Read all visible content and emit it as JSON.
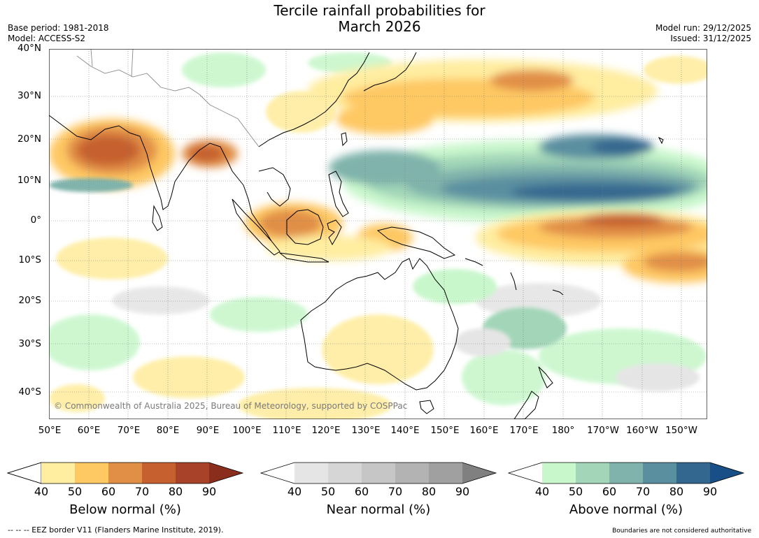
{
  "title": {
    "line1": "Tercile rainfall probabilities for",
    "line2": "March 2026"
  },
  "meta": {
    "base_period": "Base period: 1981-2018",
    "model": "Model: ACCESS-S2",
    "model_run": "Model run: 29/12/2025",
    "issued": "Issued: 31/12/2025"
  },
  "map": {
    "lat_labels": [
      "40°N",
      "30°N",
      "20°N",
      "10°N",
      "0°",
      "10°S",
      "20°S",
      "30°S",
      "40°S"
    ],
    "lon_labels": [
      "50°E",
      "60°E",
      "70°E",
      "80°E",
      "90°E",
      "100°E",
      "110°E",
      "120°E",
      "130°E",
      "140°E",
      "150°E",
      "160°E",
      "170°E",
      "180°",
      "170°W",
      "160°W",
      "150°W"
    ],
    "copyright": "© Commonwealth of Australia 2025, Bureau of Meteorology, supported by COSPPac"
  },
  "colorbars": [
    {
      "title": "Below normal (%)",
      "ticks": [
        "40",
        "50",
        "60",
        "70",
        "80",
        "90"
      ],
      "colors": [
        "#ffffff",
        "#ffeda0",
        "#fec863",
        "#e18f46",
        "#c6602f",
        "#a8432a",
        "#8a2d1d"
      ]
    },
    {
      "title": "Near normal (%)",
      "ticks": [
        "40",
        "50",
        "60",
        "70",
        "80",
        "90"
      ],
      "colors": [
        "#ffffff",
        "#e5e5e5",
        "#d6d6d6",
        "#c6c6c6",
        "#b3b3b3",
        "#a0a0a0",
        "#808080"
      ]
    },
    {
      "title": "Above normal (%)",
      "ticks": [
        "40",
        "50",
        "60",
        "70",
        "80",
        "90"
      ],
      "colors": [
        "#ffffff",
        "#c9f7cc",
        "#a3d6b8",
        "#7fb3ab",
        "#5a8fa0",
        "#34678f",
        "#174f86"
      ]
    }
  ],
  "footer": {
    "eez": "--  --  -- EEZ border V11 (Flanders Marine Institute, 2019).",
    "boundaries": "Boundaries are not considered authoritative"
  }
}
